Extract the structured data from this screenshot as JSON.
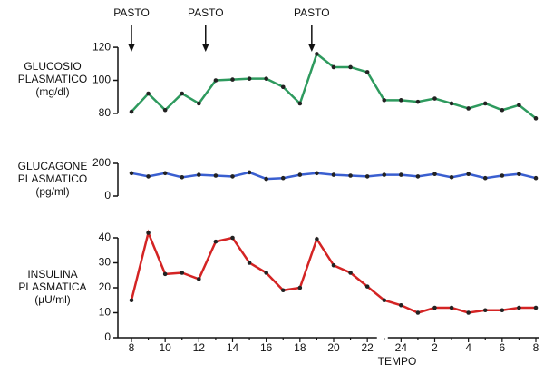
{
  "chart_data": [
    {
      "type": "line",
      "ylabel": [
        "GLUCOSIO",
        "PLASMATICO",
        "(mg/dl)"
      ],
      "color": "#2e9a5e",
      "annotations": [
        {
          "text": "PASTO",
          "x": 0
        },
        {
          "text": "PASTO",
          "x": 4.4
        },
        {
          "text": "PASTO",
          "x": 10.7
        }
      ],
      "values": [
        81,
        92,
        82,
        92,
        86,
        100,
        100.5,
        101,
        101,
        96,
        86,
        116,
        108,
        108,
        105,
        88,
        88,
        87,
        89,
        86,
        83,
        86,
        82,
        85,
        77
      ],
      "ylim": [
        75,
        125
      ],
      "yticks": [
        80,
        100,
        120
      ]
    },
    {
      "type": "line",
      "ylabel": [
        "GLUCAGONE",
        "PLASMATICO",
        "(pg/ml)"
      ],
      "color": "#3a5fd0",
      "values": [
        140,
        120,
        140,
        115,
        130,
        125,
        120,
        145,
        105,
        110,
        130,
        140,
        130,
        125,
        120,
        130,
        130,
        120,
        135,
        115,
        135,
        110,
        125,
        135,
        110
      ],
      "ylim": [
        0,
        200
      ],
      "yticks": [
        0,
        200
      ]
    },
    {
      "type": "line",
      "ylabel": [
        "INSULINA",
        "PLASMATICA",
        "(µU/ml)"
      ],
      "color": "#d42424",
      "xlabel": "TEMPO",
      "categories": [
        "8",
        null,
        "10",
        null,
        "12",
        null,
        "14",
        null,
        "16",
        null,
        "18",
        null,
        "20",
        null,
        "22",
        null,
        "24",
        null,
        "2",
        null,
        "4",
        null,
        "6",
        null,
        "8"
      ],
      "values": [
        15,
        42,
        25.5,
        26,
        23.5,
        38.5,
        40,
        30,
        26,
        19,
        20,
        39.5,
        29,
        26,
        20.5,
        15,
        13,
        10,
        12,
        12,
        10,
        11,
        11,
        12,
        12
      ],
      "ylim": [
        0,
        40
      ],
      "yticks": [
        0,
        10,
        20,
        30,
        40
      ]
    }
  ]
}
